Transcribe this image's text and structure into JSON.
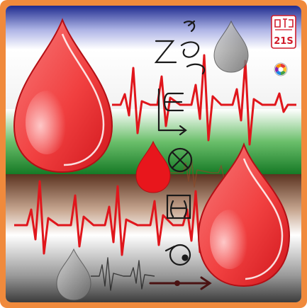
{
  "logo": {
    "text": "21S",
    "color": "#d11b2a"
  },
  "colors": {
    "frame": "#f08a3c",
    "band_blue": "#1e2b8f",
    "band_green": "#1f8a2c",
    "band_brown": "#6b3f24",
    "band_gray": "#4a4a4a",
    "ecg_line": "#e0161c",
    "drop_main": "#f03b3b",
    "symbol_ink": "#1a1a1a"
  },
  "icons": [
    "blood-drop-icon",
    "ecg-line-icon",
    "spiral-glyph-icon",
    "element-of-icon",
    "circled-times-icon",
    "squared-minus-icon",
    "circled-dot-icon",
    "arrow-right-icon",
    "color-wheel-icon"
  ]
}
